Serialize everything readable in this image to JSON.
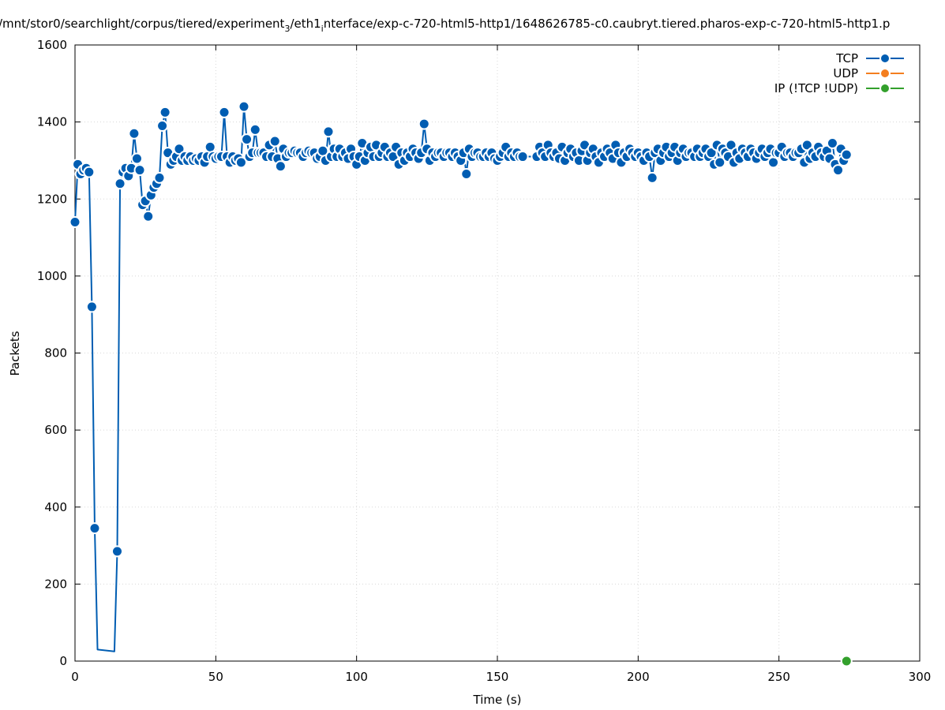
{
  "chart_data": {
    "type": "line",
    "title": "/mnt/stor0/searchlight/corpus/tiered/experiment",
    "title_parts": {
      "prefix": "/mnt/stor0/searchlight/corpus/tiered/experiment",
      "sub1": "3",
      "mid": "/eth1",
      "sub2": "i",
      "suffix": "nterface/exp-c-720-html5-http1/1648626785-c0.caubryt.tiered.pharos-exp-c-720-html5-http1.p"
    },
    "xlabel": "Time (s)",
    "ylabel": "Packets",
    "xlim": [
      0,
      300
    ],
    "ylim": [
      0,
      1600
    ],
    "xticks": [
      0,
      50,
      100,
      150,
      200,
      250,
      300
    ],
    "yticks": [
      0,
      200,
      400,
      600,
      800,
      1000,
      1200,
      1400,
      1600
    ],
    "grid": true,
    "legend_position": "top-right",
    "series": [
      {
        "name": "TCP",
        "color": "#005db2",
        "points": [
          [
            0,
            1140
          ],
          [
            1,
            1290
          ],
          [
            2,
            1265
          ],
          [
            3,
            1275
          ],
          [
            4,
            1280
          ],
          [
            5,
            1270
          ],
          [
            6,
            920
          ],
          [
            7,
            345
          ],
          [
            8,
            30
          ],
          [
            14,
            25
          ],
          [
            15,
            285
          ],
          [
            16,
            1240
          ],
          [
            17,
            1270
          ],
          [
            18,
            1280
          ],
          [
            19,
            1260
          ],
          [
            20,
            1280
          ],
          [
            21,
            1370
          ],
          [
            22,
            1305
          ],
          [
            23,
            1275
          ],
          [
            24,
            1185
          ],
          [
            25,
            1195
          ],
          [
            26,
            1155
          ],
          [
            27,
            1210
          ],
          [
            28,
            1230
          ],
          [
            29,
            1240
          ],
          [
            30,
            1255
          ],
          [
            31,
            1390
          ],
          [
            32,
            1425
          ],
          [
            33,
            1320
          ],
          [
            34,
            1290
          ],
          [
            35,
            1300
          ],
          [
            36,
            1310
          ],
          [
            37,
            1330
          ],
          [
            38,
            1300
          ],
          [
            39,
            1310
          ],
          [
            40,
            1300
          ],
          [
            41,
            1310
          ],
          [
            42,
            1300
          ],
          [
            43,
            1305
          ],
          [
            44,
            1300
          ],
          [
            45,
            1310
          ],
          [
            46,
            1295
          ],
          [
            47,
            1310
          ],
          [
            48,
            1335
          ],
          [
            49,
            1310
          ],
          [
            50,
            1305
          ],
          [
            51,
            1310
          ],
          [
            52,
            1310
          ],
          [
            53,
            1425
          ],
          [
            54,
            1310
          ],
          [
            55,
            1295
          ],
          [
            56,
            1310
          ],
          [
            57,
            1300
          ],
          [
            58,
            1305
          ],
          [
            59,
            1295
          ],
          [
            60,
            1440
          ],
          [
            61,
            1355
          ],
          [
            62,
            1310
          ],
          [
            63,
            1320
          ],
          [
            64,
            1380
          ],
          [
            65,
            1320
          ],
          [
            66,
            1320
          ],
          [
            67,
            1320
          ],
          [
            68,
            1310
          ],
          [
            69,
            1340
          ],
          [
            70,
            1310
          ],
          [
            71,
            1350
          ],
          [
            72,
            1305
          ],
          [
            73,
            1285
          ],
          [
            74,
            1330
          ],
          [
            75,
            1310
          ],
          [
            76,
            1320
          ],
          [
            77,
            1320
          ],
          [
            78,
            1325
          ],
          [
            79,
            1320
          ],
          [
            80,
            1320
          ],
          [
            81,
            1310
          ],
          [
            82,
            1320
          ],
          [
            83,
            1325
          ],
          [
            84,
            1320
          ],
          [
            85,
            1320
          ],
          [
            86,
            1305
          ],
          [
            87,
            1310
          ],
          [
            88,
            1325
          ],
          [
            89,
            1300
          ],
          [
            90,
            1375
          ],
          [
            91,
            1310
          ],
          [
            92,
            1330
          ],
          [
            93,
            1310
          ],
          [
            94,
            1330
          ],
          [
            95,
            1310
          ],
          [
            96,
            1320
          ],
          [
            97,
            1305
          ],
          [
            98,
            1330
          ],
          [
            99,
            1310
          ],
          [
            100,
            1290
          ],
          [
            101,
            1310
          ],
          [
            102,
            1345
          ],
          [
            103,
            1300
          ],
          [
            104,
            1320
          ],
          [
            105,
            1335
          ],
          [
            106,
            1310
          ],
          [
            107,
            1340
          ],
          [
            108,
            1310
          ],
          [
            109,
            1320
          ],
          [
            110,
            1335
          ],
          [
            111,
            1310
          ],
          [
            112,
            1320
          ],
          [
            113,
            1310
          ],
          [
            114,
            1335
          ],
          [
            115,
            1290
          ],
          [
            116,
            1320
          ],
          [
            117,
            1300
          ],
          [
            118,
            1320
          ],
          [
            119,
            1310
          ],
          [
            120,
            1330
          ],
          [
            121,
            1320
          ],
          [
            122,
            1305
          ],
          [
            123,
            1320
          ],
          [
            124,
            1395
          ],
          [
            125,
            1330
          ],
          [
            126,
            1300
          ],
          [
            127,
            1320
          ],
          [
            128,
            1310
          ],
          [
            129,
            1320
          ],
          [
            130,
            1320
          ],
          [
            131,
            1310
          ],
          [
            132,
            1320
          ],
          [
            133,
            1320
          ],
          [
            134,
            1310
          ],
          [
            135,
            1320
          ],
          [
            136,
            1310
          ],
          [
            137,
            1300
          ],
          [
            138,
            1320
          ],
          [
            139,
            1265
          ],
          [
            140,
            1330
          ],
          [
            141,
            1310
          ],
          [
            142,
            1320
          ],
          [
            143,
            1320
          ],
          [
            144,
            1310
          ],
          [
            145,
            1310
          ],
          [
            146,
            1320
          ],
          [
            147,
            1310
          ],
          [
            148,
            1320
          ],
          [
            149,
            1305
          ],
          [
            150,
            1300
          ],
          [
            151,
            1310
          ],
          [
            152,
            1320
          ],
          [
            153,
            1335
          ],
          [
            154,
            1310
          ],
          [
            155,
            1320
          ],
          [
            156,
            1310
          ],
          [
            157,
            1320
          ],
          [
            158,
            1310
          ],
          [
            159,
            1310
          ],
          [
            164,
            1310
          ],
          [
            165,
            1335
          ],
          [
            166,
            1320
          ],
          [
            167,
            1310
          ],
          [
            168,
            1340
          ],
          [
            169,
            1320
          ],
          [
            170,
            1310
          ],
          [
            171,
            1320
          ],
          [
            172,
            1305
          ],
          [
            173,
            1335
          ],
          [
            174,
            1300
          ],
          [
            175,
            1320
          ],
          [
            176,
            1330
          ],
          [
            177,
            1310
          ],
          [
            178,
            1320
          ],
          [
            179,
            1300
          ],
          [
            180,
            1325
          ],
          [
            181,
            1340
          ],
          [
            182,
            1300
          ],
          [
            183,
            1320
          ],
          [
            184,
            1330
          ],
          [
            185,
            1310
          ],
          [
            186,
            1295
          ],
          [
            187,
            1320
          ],
          [
            188,
            1310
          ],
          [
            189,
            1330
          ],
          [
            190,
            1320
          ],
          [
            191,
            1305
          ],
          [
            192,
            1340
          ],
          [
            193,
            1320
          ],
          [
            194,
            1295
          ],
          [
            195,
            1320
          ],
          [
            196,
            1310
          ],
          [
            197,
            1330
          ],
          [
            198,
            1320
          ],
          [
            199,
            1310
          ],
          [
            200,
            1320
          ],
          [
            201,
            1310
          ],
          [
            202,
            1300
          ],
          [
            203,
            1320
          ],
          [
            204,
            1310
          ],
          [
            205,
            1255
          ],
          [
            206,
            1320
          ],
          [
            207,
            1330
          ],
          [
            208,
            1300
          ],
          [
            209,
            1320
          ],
          [
            210,
            1335
          ],
          [
            211,
            1310
          ],
          [
            212,
            1320
          ],
          [
            213,
            1335
          ],
          [
            214,
            1300
          ],
          [
            215,
            1320
          ],
          [
            216,
            1330
          ],
          [
            217,
            1310
          ],
          [
            218,
            1320
          ],
          [
            219,
            1320
          ],
          [
            220,
            1310
          ],
          [
            221,
            1330
          ],
          [
            222,
            1310
          ],
          [
            223,
            1320
          ],
          [
            224,
            1330
          ],
          [
            225,
            1310
          ],
          [
            226,
            1320
          ],
          [
            227,
            1290
          ],
          [
            228,
            1340
          ],
          [
            229,
            1295
          ],
          [
            230,
            1330
          ],
          [
            231,
            1320
          ],
          [
            232,
            1310
          ],
          [
            233,
            1340
          ],
          [
            234,
            1295
          ],
          [
            235,
            1320
          ],
          [
            236,
            1305
          ],
          [
            237,
            1330
          ],
          [
            238,
            1320
          ],
          [
            239,
            1310
          ],
          [
            240,
            1330
          ],
          [
            241,
            1320
          ],
          [
            242,
            1305
          ],
          [
            243,
            1320
          ],
          [
            244,
            1330
          ],
          [
            245,
            1310
          ],
          [
            246,
            1320
          ],
          [
            247,
            1330
          ],
          [
            248,
            1295
          ],
          [
            249,
            1320
          ],
          [
            250,
            1320
          ],
          [
            251,
            1335
          ],
          [
            252,
            1310
          ],
          [
            253,
            1320
          ],
          [
            254,
            1320
          ],
          [
            255,
            1310
          ],
          [
            256,
            1320
          ],
          [
            257,
            1320
          ],
          [
            258,
            1330
          ],
          [
            259,
            1295
          ],
          [
            260,
            1340
          ],
          [
            261,
            1305
          ],
          [
            262,
            1320
          ],
          [
            263,
            1310
          ],
          [
            264,
            1335
          ],
          [
            265,
            1320
          ],
          [
            266,
            1310
          ],
          [
            267,
            1325
          ],
          [
            268,
            1305
          ],
          [
            269,
            1345
          ],
          [
            270,
            1290
          ],
          [
            271,
            1275
          ],
          [
            272,
            1330
          ],
          [
            273,
            1300
          ],
          [
            274,
            1315
          ]
        ]
      },
      {
        "name": "UDP",
        "color": "#f47e1f",
        "points": []
      },
      {
        "name": "IP (!TCP  !UDP)",
        "color": "#33a02c",
        "points": [
          [
            274,
            0
          ]
        ]
      }
    ]
  }
}
